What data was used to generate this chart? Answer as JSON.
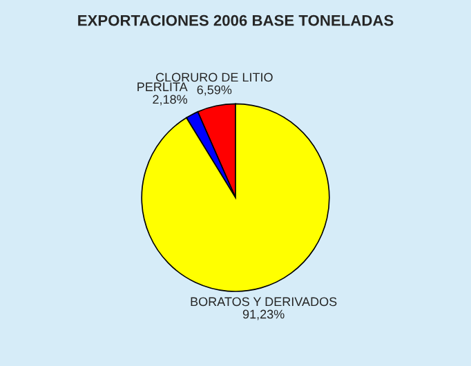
{
  "chart_data": {
    "type": "pie",
    "title": "EXPORTACIONES 2006 BASE TONELADAS",
    "categories": [
      "CLORURO DE LITIO",
      "PERLITA",
      "BORATOS Y DERIVADOS"
    ],
    "values": [
      6.59,
      2.18,
      91.23
    ],
    "value_labels": [
      "6,59%",
      "2,18%",
      "91,23%"
    ],
    "colors": [
      "#ff0000",
      "#0000ff",
      "#ffff00"
    ]
  }
}
